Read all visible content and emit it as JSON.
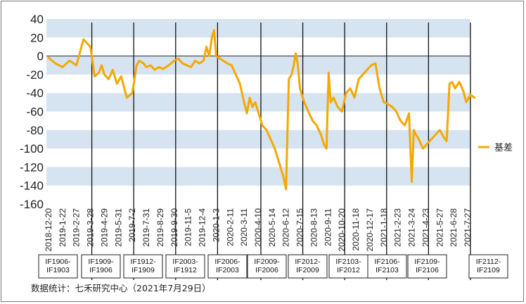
{
  "chart_data": {
    "type": "line",
    "title": "",
    "xlabel": "",
    "ylabel": "",
    "ylim": [
      -160,
      40
    ],
    "yticks": [
      40,
      20,
      0,
      -20,
      -40,
      -60,
      -80,
      -100,
      -120,
      -140,
      -160
    ],
    "x_tick_labels": [
      "2018-12-20",
      "2019-1-22",
      "2019-2-27",
      "2019-3-28",
      "2019-4-29",
      "2019-5-31",
      "2019-7-2",
      "2019-7-31",
      "2019-8-29",
      "2019-9-30",
      "2019-11-5",
      "2019-12-4",
      "2020-1-3",
      "2020-2-11",
      "2020-3-11",
      "2020-4-10",
      "2020-5-14",
      "2020-6-12",
      "2020-7-15",
      "2020-8-13",
      "2020-9-11",
      "2020-10-20",
      "2020-11-18",
      "2020-12-17",
      "2021-1-18",
      "2021-2-23",
      "2021-3-24",
      "2021-4-23",
      "2021-5-27",
      "2021-6-28",
      "2021-7-27"
    ],
    "grid": "horizontal-bands",
    "legend_position": "right",
    "line_color": "#f5a800",
    "band_color": "#d6e4f2",
    "series": [
      {
        "name": "基差",
        "x_index": [
          0,
          0.5,
          1,
          1.5,
          2,
          2.5,
          3,
          3.3,
          3.6,
          3.8,
          4,
          4.3,
          4.6,
          4.9,
          5.2,
          5.6,
          6,
          6.3,
          6.5,
          6.8,
          7,
          7.3,
          7.6,
          7.9,
          8.2,
          8.6,
          9,
          9.3,
          9.6,
          9.9,
          10.2,
          10.5,
          10.8,
          11.1,
          11.3,
          11.5,
          11.7,
          11.85,
          12,
          12.2,
          12.5,
          12.8,
          13.1,
          13.4,
          13.7,
          14,
          14.2,
          14.4,
          14.6,
          14.8,
          15,
          15.3,
          15.6,
          15.9,
          16.2,
          16.5,
          16.8,
          17,
          17.2,
          17.4,
          17.55,
          17.7,
          17.85,
          18,
          18.3,
          18.6,
          18.9,
          19.2,
          19.5,
          19.7,
          19.9,
          20.05,
          20.2,
          20.4,
          20.7,
          21,
          21.3,
          21.6,
          21.9,
          22.2,
          22.5,
          22.8,
          23.1,
          23.4,
          23.7,
          24,
          24.3,
          24.6,
          24.9,
          25.2,
          25.5,
          25.8,
          26,
          26.15,
          26.3,
          26.5,
          26.8,
          27.1,
          27.4,
          27.7,
          28,
          28.3,
          28.5,
          28.7,
          28.9,
          29.1,
          29.4,
          29.7,
          29.9,
          30.2,
          30.5
        ],
        "values": [
          -2,
          -8,
          -12,
          -5,
          -10,
          18,
          10,
          -22,
          -18,
          -10,
          -20,
          -25,
          -15,
          -30,
          -22,
          -45,
          -40,
          -10,
          -5,
          -8,
          -12,
          -10,
          -15,
          -12,
          -14,
          -10,
          -5,
          -3,
          -8,
          -10,
          -12,
          -5,
          -8,
          -5,
          10,
          0,
          20,
          28,
          0,
          -2,
          -5,
          -8,
          -10,
          -20,
          -30,
          -50,
          -62,
          -45,
          -55,
          -50,
          -60,
          -75,
          -80,
          -90,
          -100,
          -115,
          -130,
          -144,
          -25,
          -20,
          -10,
          3,
          -10,
          -35,
          -50,
          -60,
          -70,
          -75,
          -85,
          -95,
          -100,
          -18,
          -50,
          -45,
          -55,
          -60,
          -40,
          -35,
          -45,
          -25,
          -20,
          -15,
          -10,
          -8,
          -35,
          -50,
          -52,
          -55,
          -60,
          -70,
          -75,
          -62,
          -136,
          -80,
          -85,
          -90,
          -100,
          -95,
          -90,
          -85,
          -80,
          -88,
          -92,
          -30,
          -28,
          -35,
          -28,
          -38,
          -50,
          -42,
          -45
        ]
      }
    ],
    "contract_boxes": [
      "IF1906-\nIF1903",
      "IF1909-\nIF1906",
      "IF1912-\nIF1909",
      "IF2003-\nIF1912",
      "IF2006-\nIF2003",
      "IF2009-\nIF2006",
      "IF2012-\nIF2009",
      "IF2103-\nIF2012",
      "IF2106-\nIF2103",
      "IF2109-\nIF2106",
      "IF2112-\nIF2109"
    ],
    "roll_markers_x_index": [
      3.1,
      6.1,
      9.1,
      12.1,
      15.2,
      18.2,
      21.2,
      24.2,
      27.2,
      30.2
    ]
  },
  "legend": {
    "label": "基差"
  },
  "source_note": "数据统计：七禾研究中心（2021年7月29日）"
}
